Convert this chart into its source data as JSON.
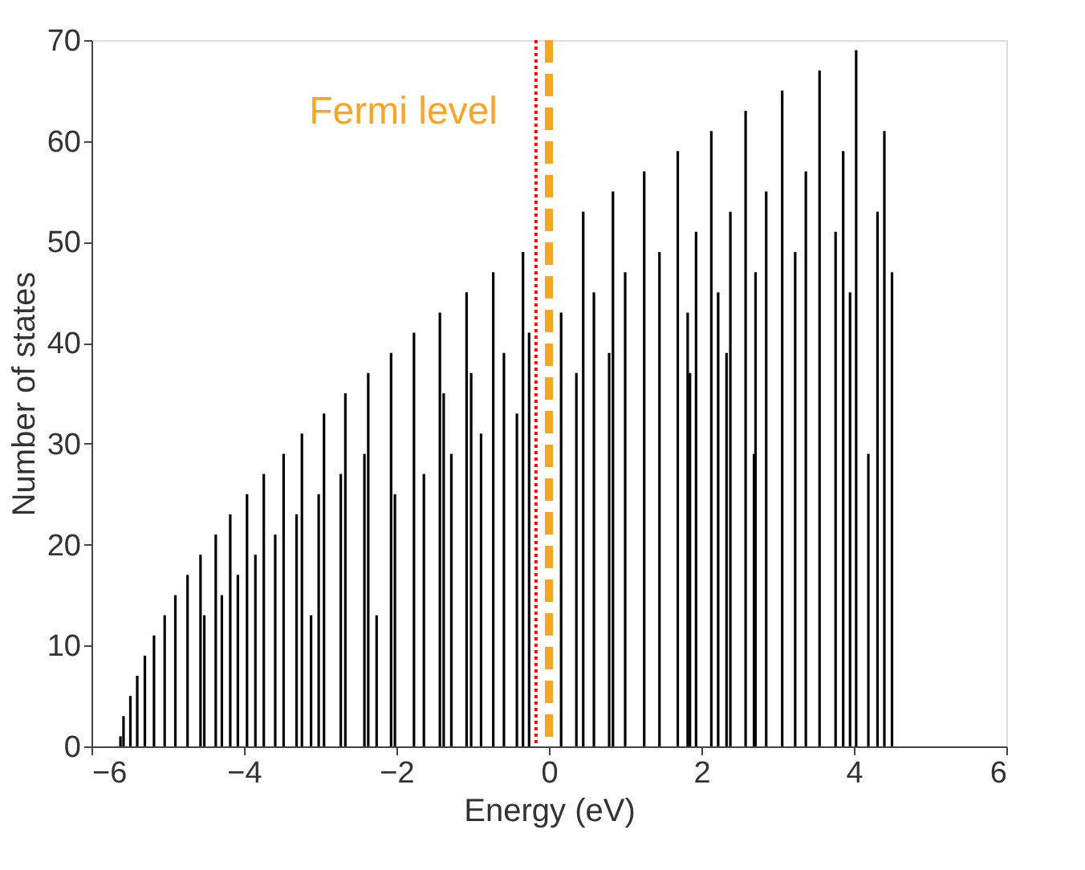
{
  "chart_data": {
    "type": "bar",
    "xlabel": "Energy (eV)",
    "ylabel": "Number of states",
    "x": [
      -5.62,
      -5.58,
      -5.49,
      -5.4,
      -5.3,
      -5.18,
      -5.04,
      -4.9,
      -4.74,
      -4.57,
      -4.52,
      -4.37,
      -4.29,
      -4.18,
      -4.08,
      -3.96,
      -3.85,
      -3.74,
      -3.59,
      -3.48,
      -3.31,
      -3.24,
      -3.12,
      -3.02,
      -2.95,
      -2.73,
      -2.67,
      -2.42,
      -2.37,
      -2.26,
      -2.07,
      -2.02,
      -1.77,
      -1.64,
      -1.43,
      -1.38,
      -1.28,
      -1.08,
      -1.02,
      -0.89,
      -0.73,
      -0.59,
      -0.42,
      -0.34,
      -0.26,
      0.16,
      0.36,
      0.45,
      0.59,
      0.79,
      0.84,
      1.0,
      1.25,
      1.45,
      1.69,
      1.82,
      1.85,
      1.93,
      2.13,
      2.22,
      2.33,
      2.38,
      2.58,
      2.69,
      2.71,
      2.85,
      3.06,
      3.23,
      3.37,
      3.55,
      3.76,
      3.86,
      3.95,
      4.03,
      4.19,
      4.31,
      4.4,
      4.5
    ],
    "values": [
      1,
      3,
      5,
      7,
      9,
      11,
      13,
      15,
      17,
      19,
      13,
      21,
      15,
      23,
      17,
      25,
      19,
      27,
      21,
      29,
      23,
      31,
      13,
      25,
      33,
      27,
      35,
      29,
      37,
      13,
      39,
      25,
      41,
      27,
      43,
      35,
      29,
      45,
      37,
      31,
      47,
      39,
      33,
      49,
      41,
      43,
      37,
      53,
      45,
      39,
      55,
      47,
      57,
      49,
      59,
      43,
      37,
      51,
      61,
      45,
      39,
      53,
      63,
      29,
      47,
      55,
      65,
      49,
      57,
      67,
      51,
      59,
      45,
      69,
      29,
      53,
      61,
      47
    ],
    "color": "#000000",
    "xlim": [
      -6,
      6
    ],
    "xticks": [
      -6,
      -4,
      -2,
      0,
      2,
      4,
      6
    ],
    "ylim": [
      0,
      70
    ],
    "yticks": [
      0,
      10,
      20,
      30,
      40,
      50,
      60,
      70
    ],
    "grid": false,
    "ref_lines": [
      {
        "axis": "x",
        "value": -0.17,
        "label": null,
        "color": "#ff0000",
        "line_style": "dotted"
      },
      {
        "axis": "x",
        "value": 0,
        "label": "Fermi level",
        "color": "#f5a623",
        "line_style": "dashed"
      }
    ]
  }
}
